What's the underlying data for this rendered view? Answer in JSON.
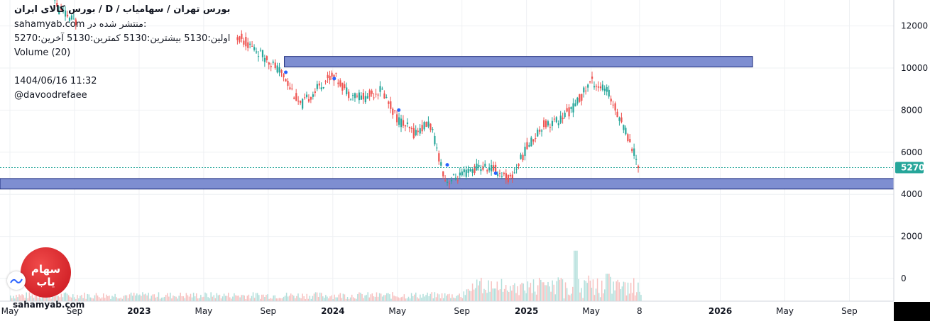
{
  "header": {
    "title": "بورس کالای ایران / D / بورس تهران / سهامیاب",
    "published_label": "منتشر شده در:",
    "published_site": "sahamyab.com",
    "ohlc": "اولین:5130 بیشترین:5130 کمترین:5130 آخرین:5270",
    "volume_label": "Volume (20)",
    "datetime": "1404/06/16 11:32",
    "author": "@davoodrefaee"
  },
  "logo": {
    "text": "سهام یاب",
    "watermark": "sahamyab.com",
    "color": "#d91e24"
  },
  "icons": {
    "side_button": "wave-chart-icon"
  },
  "colors": {
    "up": "#26a69a",
    "down": "#ef5350",
    "zone_fill": "#7e8ed1",
    "zone_border": "#1b2a7a",
    "price_line": "#26a69a"
  },
  "chart_data": {
    "type": "candlestick",
    "y_axis": {
      "ticks": [
        12000,
        10000,
        8000,
        6000,
        4000,
        2000,
        0
      ],
      "range": [
        -1000,
        13200
      ]
    },
    "x_axis": {
      "ticks": [
        "May",
        "Sep",
        "2023",
        "May",
        "Sep",
        "2024",
        "May",
        "Sep",
        "2025",
        "May",
        "8",
        "2026",
        "May",
        "Sep"
      ],
      "tick_dates": [
        "2022-05",
        "2022-09",
        "2023-01",
        "2023-05",
        "2023-09",
        "2024-01",
        "2024-05",
        "2024-09",
        "2025-01",
        "2025-05",
        "2025-08",
        "2026-01",
        "2026-05",
        "2026-09"
      ]
    },
    "last_price": 5270,
    "zones": [
      {
        "from": 10050,
        "to": 10550,
        "start": "2023-10",
        "end": "2026-03"
      },
      {
        "from": 4250,
        "to": 4750,
        "start": "2022-04",
        "end": "2026-12"
      }
    ],
    "price_path": [
      [
        "2022-07",
        14800
      ],
      [
        "2022-08",
        12800
      ],
      [
        "2022-09",
        12200
      ],
      [
        "2023-07",
        11600
      ],
      [
        "2023-08",
        11000
      ],
      [
        "2023-09",
        10400
      ],
      [
        "2023-10",
        9600
      ],
      [
        "2023-11",
        8200
      ],
      [
        "2023-12",
        9000
      ],
      [
        "2024-01",
        9700
      ],
      [
        "2024-02",
        8800
      ],
      [
        "2024-03",
        8600
      ],
      [
        "2024-04",
        9000
      ],
      [
        "2024-05",
        7600
      ],
      [
        "2024-06",
        6900
      ],
      [
        "2024-07",
        7400
      ],
      [
        "2024-08",
        4600
      ],
      [
        "2024-09",
        4900
      ],
      [
        "2024-10",
        5300
      ],
      [
        "2024-11",
        5200
      ],
      [
        "2024-12",
        4700
      ],
      [
        "2025-01",
        6200
      ],
      [
        "2025-02",
        7300
      ],
      [
        "2025-03",
        7500
      ],
      [
        "2025-04",
        8200
      ],
      [
        "2025-05",
        9400
      ],
      [
        "2025-06",
        8900
      ],
      [
        "2025-07",
        7300
      ],
      [
        "2025-08",
        5300
      ]
    ],
    "volume_peaks": [
      [
        "2025-04",
        2400
      ],
      [
        "2025-06",
        1300
      ],
      [
        "2025-02",
        900
      ],
      [
        "2024-11",
        600
      ]
    ]
  }
}
